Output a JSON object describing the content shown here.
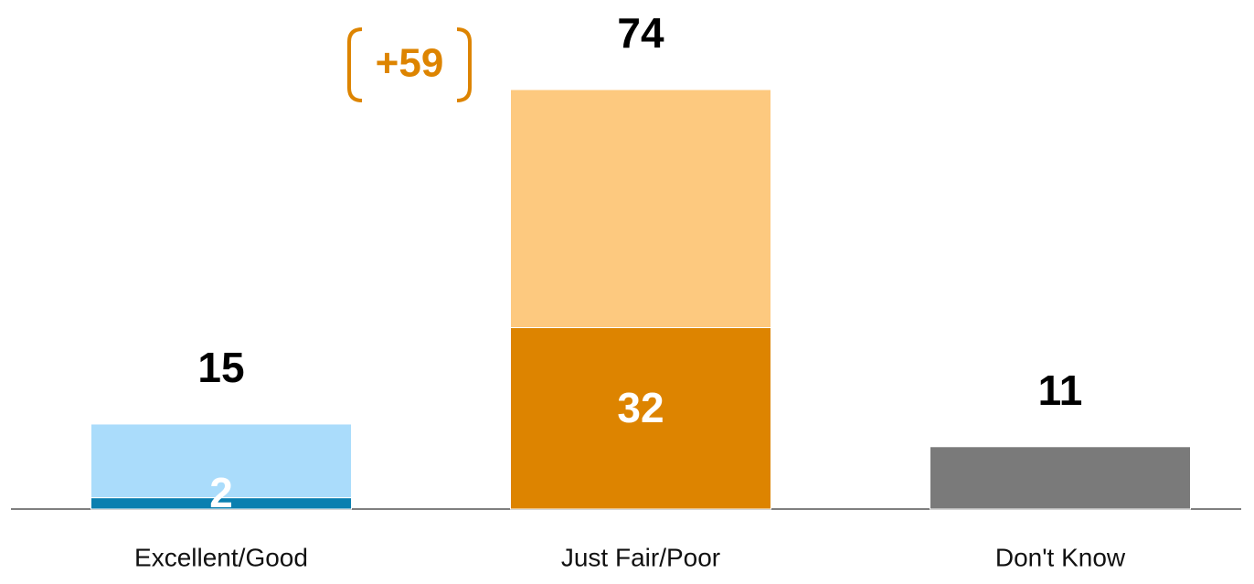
{
  "chart_data": {
    "type": "stacked-bar",
    "categories": [
      "Excellent/Good",
      "Just Fair/Poor",
      "Don't Know"
    ],
    "series": [
      {
        "colors": [
          "#0a7fb0",
          "#dd8400",
          "#7a7a7a"
        ],
        "values": [
          2,
          32,
          11
        ]
      },
      {
        "colors": [
          "#aadcfb",
          "#fdc97f",
          null
        ],
        "values": [
          13,
          42,
          null
        ]
      }
    ],
    "totals": [
      15,
      74,
      11
    ],
    "annotation": {
      "text": "+59",
      "color": "#dd8400"
    },
    "ylim": [
      0,
      74
    ]
  }
}
